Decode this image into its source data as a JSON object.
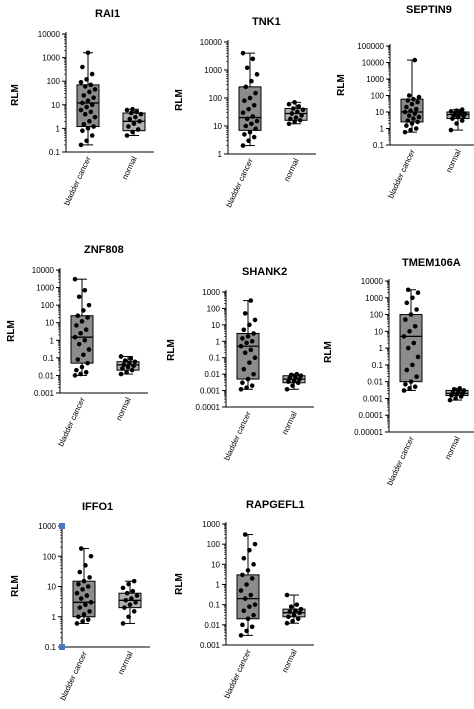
{
  "chart_data": [
    {
      "type": "box",
      "title": "RAI1",
      "ylabel": "RLM",
      "yscale": "log",
      "ylim": [
        0.1,
        10000
      ],
      "yticks": [
        "0.1",
        "1",
        "10",
        "100",
        "1000",
        "10000"
      ],
      "categories": [
        "bladder cancer",
        "normal"
      ],
      "series": [
        {
          "box": {
            "min": 0.2,
            "q1": 1.2,
            "median": 12,
            "q3": 70,
            "max": 1600
          },
          "points": [
            0.2,
            0.3,
            0.5,
            0.8,
            1,
            1.2,
            1.5,
            2,
            3,
            4,
            5,
            6,
            8,
            10,
            12,
            15,
            20,
            25,
            35,
            45,
            60,
            70,
            90,
            120,
            200,
            400,
            1600
          ]
        },
        {
          "box": {
            "min": 0.5,
            "q1": 0.8,
            "median": 2,
            "q3": 4.5,
            "max": 6.5
          },
          "points": [
            0.5,
            0.7,
            0.9,
            1.2,
            1.6,
            2,
            2.5,
            3,
            4,
            4.5,
            5,
            6,
            6.5
          ]
        }
      ]
    },
    {
      "type": "box",
      "title": "TNK1",
      "ylabel": "RLM",
      "yscale": "log",
      "ylim": [
        1,
        10000
      ],
      "yticks": [
        "1",
        "10",
        "100",
        "1000",
        "10000"
      ],
      "categories": [
        "bladder cancer",
        "normal"
      ],
      "series": [
        {
          "box": {
            "min": 2,
            "q1": 7,
            "median": 20,
            "q3": 250,
            "max": 4000
          },
          "points": [
            2,
            3,
            4,
            5,
            6,
            8,
            10,
            12,
            15,
            18,
            22,
            30,
            40,
            55,
            80,
            100,
            150,
            250,
            400,
            700,
            1200,
            2500,
            4000
          ]
        },
        {
          "box": {
            "min": 12,
            "q1": 16,
            "median": 28,
            "q3": 42,
            "max": 70
          },
          "points": [
            12,
            14,
            16,
            18,
            20,
            24,
            28,
            32,
            38,
            42,
            50,
            60,
            70
          ]
        }
      ]
    },
    {
      "type": "box",
      "title": "SEPTIN9",
      "ylabel": "RLM",
      "yscale": "log",
      "ylim": [
        0.1,
        100000
      ],
      "yticks": [
        "0.1",
        "1",
        "10",
        "100",
        "1000",
        "10000",
        "100000"
      ],
      "categories": [
        "bladder cancer",
        "normal"
      ],
      "series": [
        {
          "box": {
            "min": 0.6,
            "q1": 2.5,
            "median": 10,
            "q3": 60,
            "max": 14000
          },
          "points": [
            0.6,
            0.8,
            1,
            1.5,
            2,
            2.5,
            3,
            4,
            5,
            6,
            8,
            10,
            12,
            15,
            20,
            30,
            40,
            50,
            60,
            80,
            100,
            14000
          ]
        },
        {
          "box": {
            "min": 0.8,
            "q1": 4,
            "median": 7,
            "q3": 10,
            "max": 14
          },
          "points": [
            0.8,
            2,
            3,
            4,
            5,
            5.5,
            6,
            7,
            8,
            9,
            10,
            11,
            12,
            14
          ]
        }
      ]
    },
    {
      "type": "box",
      "title": "ZNF808",
      "ylabel": "RLM",
      "yscale": "log",
      "ylim": [
        0.001,
        10000
      ],
      "yticks": [
        "0.001",
        "0.01",
        "0.1",
        "1",
        "10",
        "100",
        "1000",
        "10000"
      ],
      "categories": [
        "bladder cancer",
        "normal"
      ],
      "series": [
        {
          "box": {
            "min": 0.01,
            "q1": 0.05,
            "median": 1.5,
            "q3": 25,
            "max": 3000
          },
          "points": [
            0.01,
            0.012,
            0.015,
            0.02,
            0.03,
            0.05,
            0.08,
            0.15,
            0.3,
            0.6,
            1,
            1.5,
            2.5,
            4,
            7,
            12,
            20,
            25,
            50,
            100,
            300,
            700,
            3000
          ]
        },
        {
          "box": {
            "min": 0.012,
            "q1": 0.02,
            "median": 0.04,
            "q3": 0.06,
            "max": 0.12
          },
          "points": [
            0.012,
            0.015,
            0.02,
            0.025,
            0.03,
            0.035,
            0.04,
            0.05,
            0.06,
            0.07,
            0.09,
            0.12
          ]
        }
      ]
    },
    {
      "type": "box",
      "title": "SHANK2",
      "ylabel": "RLM",
      "yscale": "log",
      "ylim": [
        0.0001,
        1000
      ],
      "yticks": [
        "0.0001",
        "0.001",
        "0.01",
        "0.1",
        "1",
        "10",
        "100",
        "1000"
      ],
      "categories": [
        "bladder cancer",
        "normal"
      ],
      "series": [
        {
          "box": {
            "min": 0.0012,
            "q1": 0.005,
            "median": 0.5,
            "q3": 3,
            "max": 300
          },
          "points": [
            0.0012,
            0.0015,
            0.002,
            0.003,
            0.005,
            0.01,
            0.02,
            0.05,
            0.1,
            0.2,
            0.3,
            0.5,
            0.8,
            1,
            1.5,
            2,
            3,
            5,
            10,
            20,
            50,
            300
          ]
        },
        {
          "box": {
            "min": 0.0012,
            "q1": 0.003,
            "median": 0.005,
            "q3": 0.008,
            "max": 0.01
          },
          "points": [
            0.0012,
            0.002,
            0.003,
            0.0035,
            0.004,
            0.005,
            0.006,
            0.007,
            0.008,
            0.009,
            0.01
          ]
        }
      ]
    },
    {
      "type": "box",
      "title": "TMEM106A",
      "ylabel": "RLM",
      "yscale": "log",
      "ylim": [
        1e-05,
        10000
      ],
      "yticks": [
        "0.00001",
        "0.0001",
        "0.001",
        "0.01",
        "0.1",
        "1",
        "10",
        "100",
        "1000",
        "10000"
      ],
      "categories": [
        "bladder cancer",
        "normal"
      ],
      "series": [
        {
          "box": {
            "min": 0.003,
            "q1": 0.01,
            "median": 5,
            "q3": 100,
            "max": 3000
          },
          "points": [
            0.003,
            0.004,
            0.005,
            0.007,
            0.01,
            0.02,
            0.05,
            0.1,
            0.3,
            1,
            2,
            5,
            10,
            20,
            50,
            100,
            200,
            500,
            1000,
            2000,
            3000
          ]
        },
        {
          "box": {
            "min": 0.0008,
            "q1": 0.0015,
            "median": 0.002,
            "q3": 0.003,
            "max": 0.004
          },
          "points": [
            0.0008,
            0.001,
            0.0013,
            0.0015,
            0.0018,
            0.002,
            0.0022,
            0.0025,
            0.003,
            0.0035,
            0.004
          ]
        }
      ]
    },
    {
      "type": "box",
      "title": "IFFO1",
      "ylabel": "RLM",
      "yscale": "log",
      "ylim": [
        0.1,
        1000
      ],
      "yticks": [
        "0.1",
        "1",
        "10",
        "100",
        "1000"
      ],
      "categories": [
        "bladder cancer",
        "normal"
      ],
      "series": [
        {
          "box": {
            "min": 0.6,
            "q1": 1,
            "median": 3,
            "q3": 15,
            "max": 180
          },
          "points": [
            0.6,
            0.7,
            0.8,
            1,
            1.2,
            1.5,
            2,
            2.5,
            3,
            4,
            5,
            6,
            8,
            10,
            12,
            15,
            20,
            30,
            50,
            100,
            180
          ]
        },
        {
          "box": {
            "min": 0.6,
            "q1": 2,
            "median": 3.5,
            "q3": 6,
            "max": 15
          },
          "points": [
            0.6,
            1,
            1.5,
            2,
            2.5,
            3,
            3.5,
            4,
            5,
            6,
            7,
            9,
            12,
            15
          ]
        }
      ]
    },
    {
      "type": "box",
      "title": "RAPGEFL1",
      "ylabel": "RLM",
      "yscale": "log",
      "ylim": [
        0.001,
        1000
      ],
      "yticks": [
        "0.001",
        "0.01",
        "0.1",
        "1",
        "10",
        "100",
        "1000"
      ],
      "categories": [
        "bladder cancer",
        "normal"
      ],
      "series": [
        {
          "box": {
            "min": 0.003,
            "q1": 0.02,
            "median": 0.2,
            "q3": 3,
            "max": 300
          },
          "points": [
            0.003,
            0.005,
            0.008,
            0.01,
            0.02,
            0.03,
            0.05,
            0.08,
            0.1,
            0.2,
            0.3,
            0.5,
            1,
            2,
            3,
            5,
            10,
            20,
            50,
            100,
            300
          ]
        },
        {
          "box": {
            "min": 0.012,
            "q1": 0.025,
            "median": 0.04,
            "q3": 0.06,
            "max": 0.3
          },
          "points": [
            0.012,
            0.015,
            0.02,
            0.025,
            0.03,
            0.04,
            0.045,
            0.05,
            0.06,
            0.08,
            0.1,
            0.3
          ]
        }
      ]
    }
  ]
}
